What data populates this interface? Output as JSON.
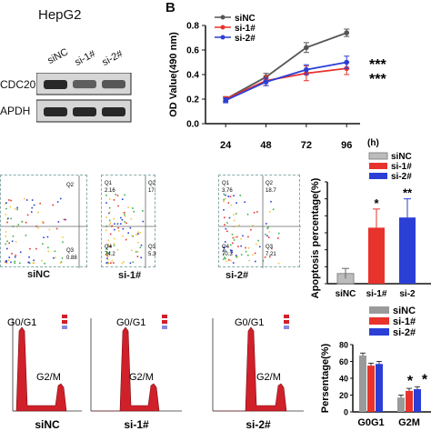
{
  "western_blot": {
    "title": "HepG2",
    "lanes": [
      "siNC",
      "si-1#",
      "si-2#"
    ],
    "rows": [
      {
        "label": "CDC20",
        "intensities": [
          1.0,
          0.55,
          0.62
        ]
      },
      {
        "label": "APDH",
        "intensities": [
          1.0,
          1.0,
          1.0
        ]
      }
    ]
  },
  "panel_letter": "B",
  "chart_data": [
    {
      "type": "line",
      "x": [
        24,
        48,
        72,
        96
      ],
      "xlabel": "(h)",
      "ylabel": "OD Value(490 nm)",
      "ylim": [
        0.0,
        0.8
      ],
      "yticks": [
        "0.0",
        "0.2",
        "0.4",
        "0.6",
        "0.8"
      ],
      "series": [
        {
          "name": "siNC",
          "color": "#555555",
          "values": [
            0.2,
            0.38,
            0.62,
            0.74
          ],
          "errors": [
            0.02,
            0.03,
            0.04,
            0.03
          ]
        },
        {
          "name": "si-1#",
          "color": "#e8322c",
          "values": [
            0.2,
            0.35,
            0.41,
            0.45
          ],
          "errors": [
            0.02,
            0.04,
            0.06,
            0.05
          ]
        },
        {
          "name": "si-2#",
          "color": "#2b3fd6",
          "values": [
            0.19,
            0.34,
            0.44,
            0.5
          ],
          "errors": [
            0.02,
            0.03,
            0.04,
            0.05
          ]
        }
      ],
      "annotations": [
        "***",
        "***"
      ]
    },
    {
      "type": "bar",
      "ylabel": "Apoptosis percentage(%)",
      "ylim": [
        0,
        30
      ],
      "yticks": [
        "0",
        "5",
        "10",
        "15",
        "20",
        "25",
        "30"
      ],
      "categories": [
        "siNC",
        "si-1#",
        "si-2"
      ],
      "values": [
        3,
        16.5,
        19.5
      ],
      "errors": [
        1.5,
        5.5,
        5.5
      ],
      "colors": [
        "#bcbcbc",
        "#e8322c",
        "#2b3fd6"
      ],
      "legend": [
        "siNC",
        "si-1#",
        "si-2#"
      ],
      "annotations": [
        "*",
        "**"
      ]
    },
    {
      "type": "bar",
      "ylabel": "Persentage(%)",
      "ylim": [
        0,
        80
      ],
      "yticks": [
        "0",
        "20",
        "40",
        "60",
        "80"
      ],
      "categories": [
        "G0G1",
        "G2M"
      ],
      "series": [
        {
          "name": "siNC",
          "color": "#9a9a9a",
          "values": [
            67,
            17
          ]
        },
        {
          "name": "si-1#",
          "color": "#e8322c",
          "values": [
            55,
            25
          ]
        },
        {
          "name": "si-2#",
          "color": "#2b3fd6",
          "values": [
            57,
            27
          ]
        }
      ],
      "annotations": [
        "*"
      ]
    }
  ],
  "flow_cytometry": [
    {
      "label": "siNC",
      "q": [
        "",
        "Q2",
        "Q3",
        "0.88"
      ]
    },
    {
      "label": "si-1#",
      "q": [
        "Q1",
        "2.16",
        "Q2",
        "17.7",
        "Q4",
        "74.2",
        "Q3",
        "5.36"
      ]
    },
    {
      "label": "si-2#",
      "q": [
        "Q1",
        "3.76",
        "Q2",
        "18.7",
        "Q4",
        "70.3",
        "Q3",
        "7.21"
      ]
    }
  ],
  "cell_cycle": [
    {
      "label": "siNC",
      "peak1": "G0/G1",
      "peak2": "G2/M"
    },
    {
      "label": "si-1#",
      "peak1": "G0/G1",
      "peak2": "G2/M"
    },
    {
      "label": "si-2#",
      "peak1": "G0/G1",
      "peak2": "G2/M"
    }
  ]
}
